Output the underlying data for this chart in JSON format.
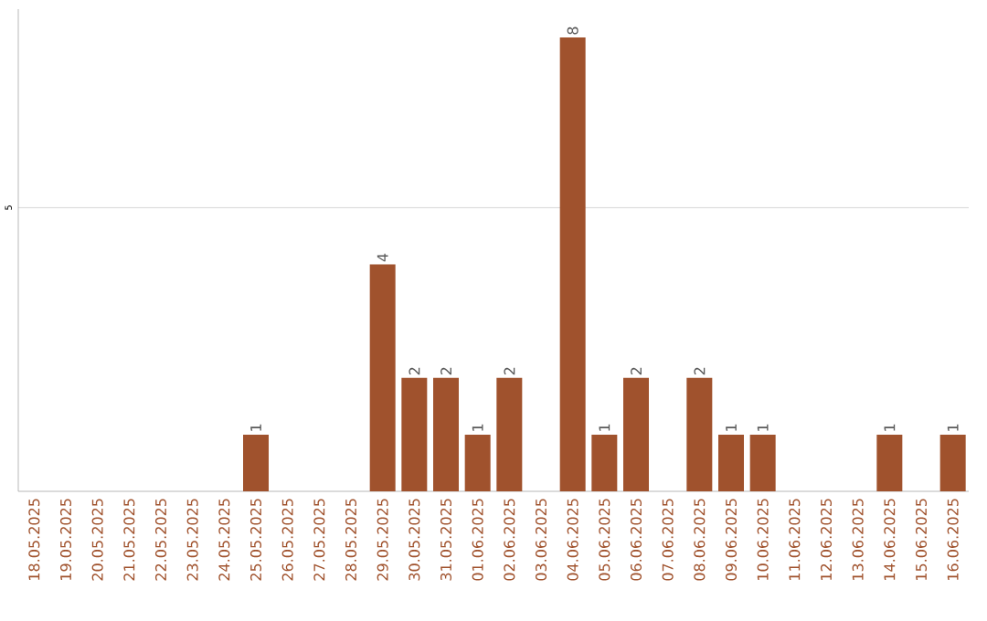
{
  "chart_data": {
    "type": "bar",
    "categories": [
      "18.05.2025",
      "19.05.2025",
      "20.05.2025",
      "21.05.2025",
      "22.05.2025",
      "23.05.2025",
      "24.05.2025",
      "25.05.2025",
      "26.05.2025",
      "27.05.2025",
      "28.05.2025",
      "29.05.2025",
      "30.05.2025",
      "31.05.2025",
      "01.06.2025",
      "02.06.2025",
      "03.06.2025",
      "04.06.2025",
      "05.06.2025",
      "06.06.2025",
      "07.06.2025",
      "08.06.2025",
      "09.06.2025",
      "10.06.2025",
      "11.06.2025",
      "12.06.2025",
      "13.06.2025",
      "14.06.2025",
      "15.06.2025",
      "16.06.2025"
    ],
    "values": [
      0,
      0,
      0,
      0,
      0,
      0,
      0,
      1,
      0,
      0,
      0,
      4,
      2,
      2,
      1,
      2,
      0,
      8,
      1,
      2,
      0,
      2,
      1,
      1,
      0,
      0,
      0,
      1,
      0,
      1
    ],
    "value_labels": [
      null,
      null,
      null,
      null,
      null,
      null,
      null,
      "1",
      null,
      null,
      null,
      "4",
      "2",
      "2",
      "1",
      "2",
      null,
      "8",
      "1",
      "2",
      null,
      "2",
      "1",
      "1",
      null,
      null,
      null,
      "1",
      null,
      "1"
    ],
    "color": "#a0522d",
    "ylim": [
      0,
      8.5
    ],
    "yticks": [
      5
    ],
    "grid": "y"
  }
}
